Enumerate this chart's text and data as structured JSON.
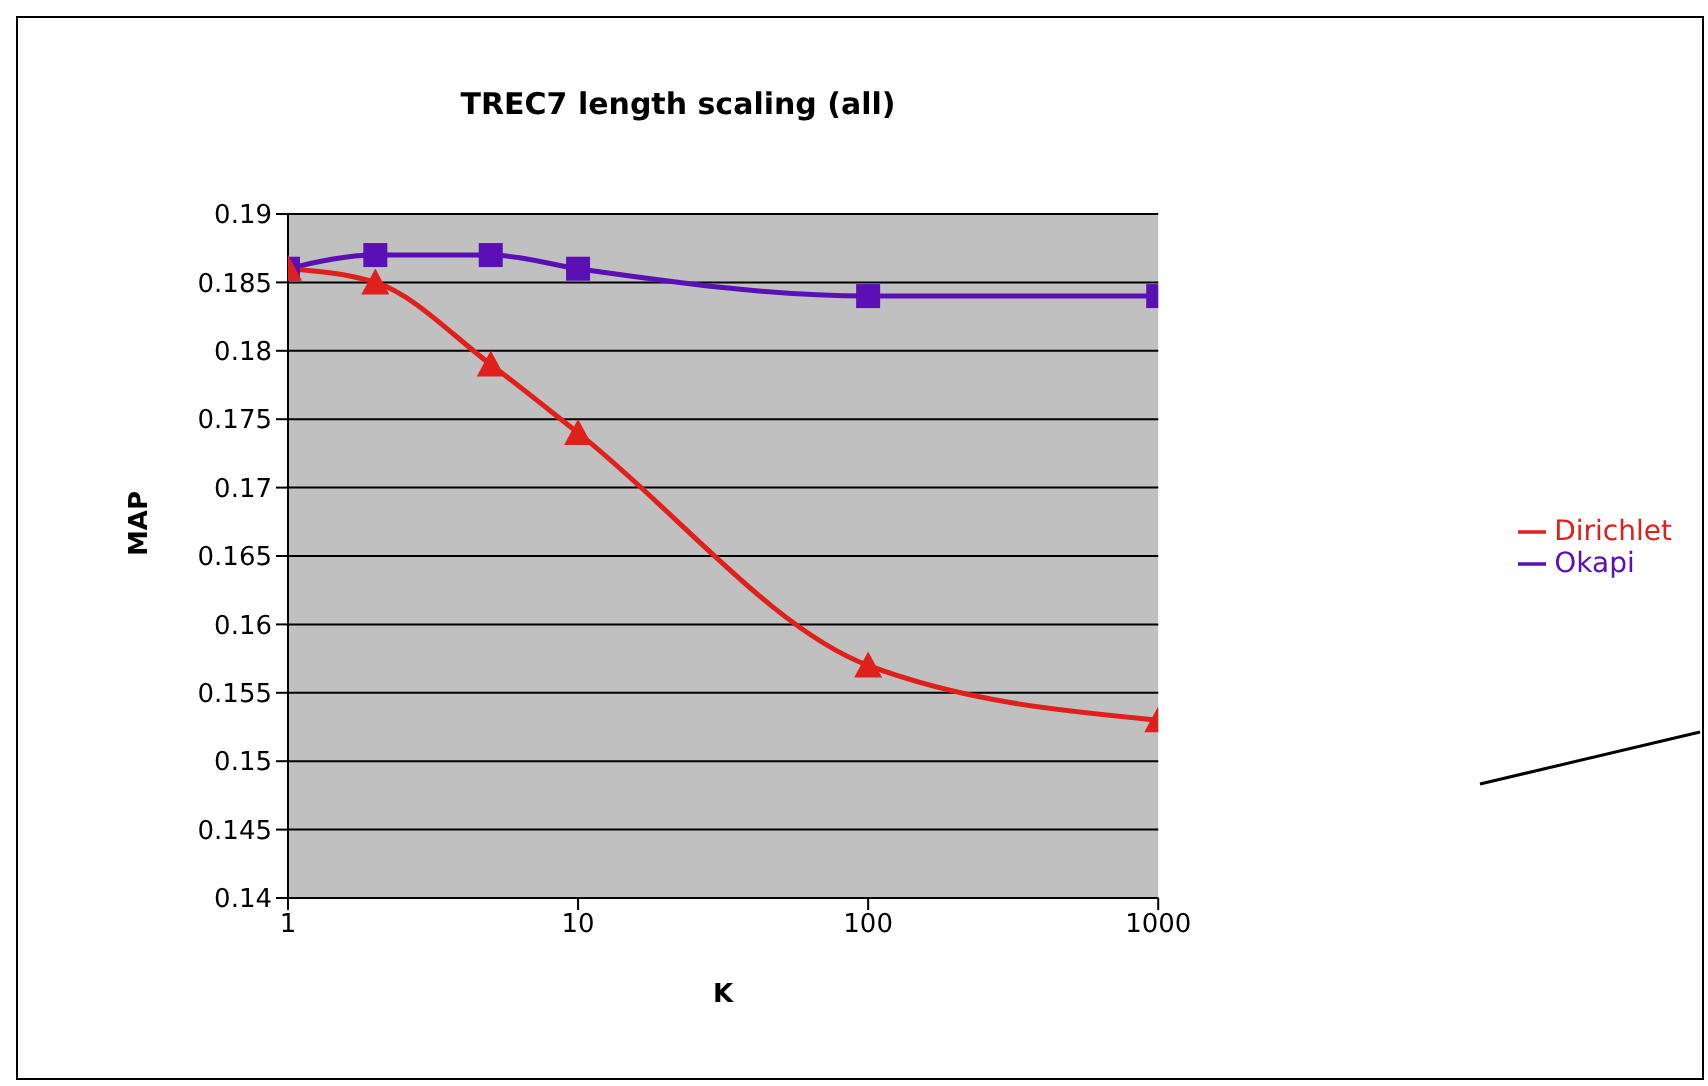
{
  "chart_data": {
    "type": "line",
    "title": "TREC7 length scaling (all)",
    "xlabel": "K",
    "ylabel": "MAP",
    "log": "x",
    "x": [
      1,
      2,
      5,
      10,
      100,
      1000
    ],
    "xlim": [
      1,
      1000
    ],
    "xticks": [
      1,
      10,
      100,
      1000
    ],
    "ylim": [
      0.14,
      0.19
    ],
    "yticks": [
      0.14,
      0.145,
      0.15,
      0.155,
      0.16,
      0.165,
      0.17,
      0.175,
      0.18,
      0.185,
      0.19
    ],
    "grid": "y",
    "legend": "right",
    "series": [
      {
        "name": "Okapi",
        "color": "#5a10b4",
        "marker": "square",
        "values": [
          0.186,
          0.187,
          0.187,
          0.186,
          0.184,
          0.184
        ]
      },
      {
        "name": "Dirichlet",
        "color": "#e0201c",
        "marker": "triangle",
        "values": [
          0.186,
          0.185,
          0.179,
          0.174,
          0.157,
          0.153
        ]
      }
    ]
  }
}
